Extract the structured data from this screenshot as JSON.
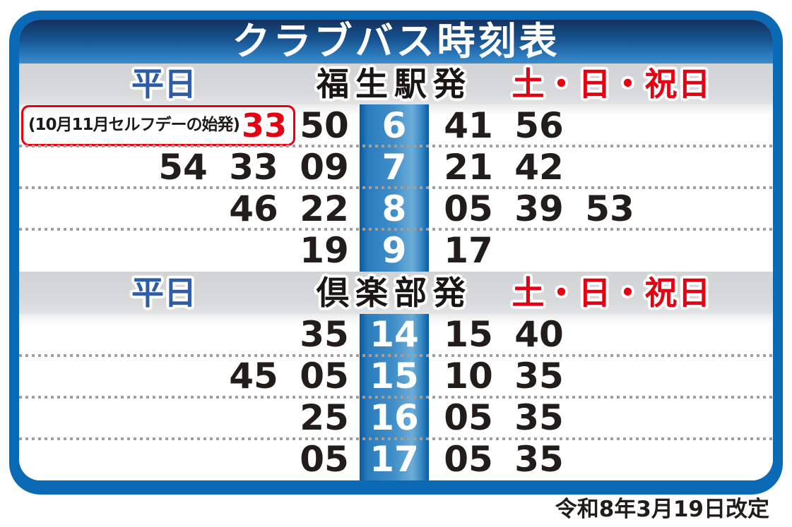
{
  "title": "クラブバス時刻表",
  "footer_revision": "令和8年3月19日改定",
  "colors": {
    "frame_blue": "#0b6ab5",
    "header_gradient_top": "#123260",
    "header_gradient_bottom": "#3c8bc8",
    "hour_column_blue": "#2b7cbe",
    "weekday_label_blue": "#2e5da8",
    "weekend_label_red": "#e50012",
    "number_black": "#221d1a",
    "band_gray": "#d5d6d8"
  },
  "sections": [
    {
      "weekday_label": "平日",
      "station_label": "福生駅発",
      "weekend_label": "土・日・祝日",
      "rows": [
        {
          "hour": "6",
          "weekday": [
            "50"
          ],
          "weekend": [
            "41",
            "56"
          ],
          "note": {
            "text": "(10月11月セルフデーの始発)",
            "time": "33"
          }
        },
        {
          "hour": "7",
          "weekday": [
            "54",
            "33",
            "09"
          ],
          "weekend": [
            "21",
            "42"
          ]
        },
        {
          "hour": "8",
          "weekday": [
            "46",
            "22"
          ],
          "weekend": [
            "05",
            "39",
            "53"
          ]
        },
        {
          "hour": "9",
          "weekday": [
            "19"
          ],
          "weekend": [
            "17"
          ]
        }
      ]
    },
    {
      "weekday_label": "平日",
      "station_label": "倶楽部発",
      "weekend_label": "土・日・祝日",
      "rows": [
        {
          "hour": "14",
          "weekday": [
            "35"
          ],
          "weekend": [
            "15",
            "40"
          ]
        },
        {
          "hour": "15",
          "weekday": [
            "45",
            "05"
          ],
          "weekend": [
            "10",
            "35"
          ]
        },
        {
          "hour": "16",
          "weekday": [
            "25"
          ],
          "weekend": [
            "05",
            "35"
          ]
        },
        {
          "hour": "17",
          "weekday": [
            "05"
          ],
          "weekend": [
            "05",
            "35"
          ]
        }
      ]
    }
  ]
}
